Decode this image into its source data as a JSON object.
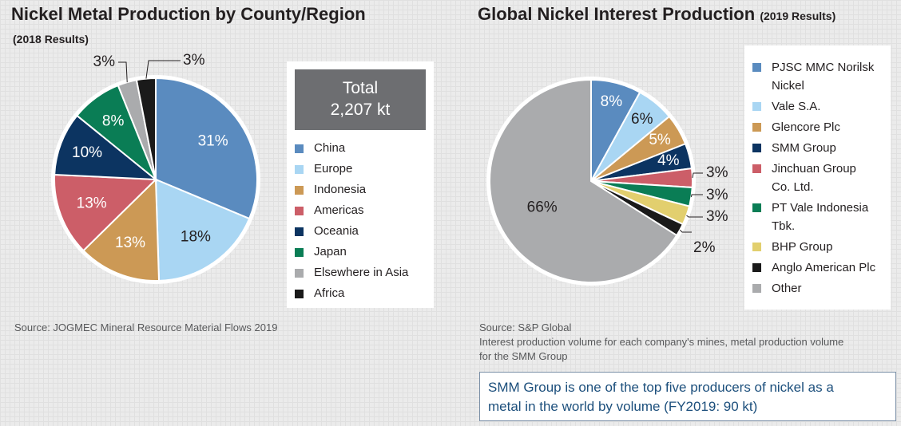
{
  "left": {
    "title": "Nickel Metal Production by County/Region",
    "subtitle": "(2018 Results)",
    "total_label": "Total",
    "total_value": "2,207 kt",
    "source": "Source: JOGMEC Mineral Resource Material Flows 2019"
  },
  "right": {
    "title": "Global Nickel Interest Production",
    "subtitle": "(2019 Results)",
    "source_line1": "Source: S&P Global",
    "source_line2": "Interest production volume for each company's mines, metal production volume",
    "source_line3": "for the SMM Group",
    "callout_line1": "SMM Group is one of the top five producers of nickel as a",
    "callout_line2": "metal in the world by volume (FY2019: 90 kt)"
  },
  "chart_data": [
    {
      "type": "pie",
      "title": "Nickel Metal Production by County/Region",
      "subtitle": "(2018 Results)",
      "total": "2,207 kt",
      "legend_position": "right",
      "slices": [
        {
          "label": "China",
          "legend": "China",
          "value": 31,
          "text": "31%",
          "color": "#5a8bbf",
          "label_color": "#ffffff"
        },
        {
          "label": "Europe",
          "legend": "Europe",
          "value": 18,
          "text": "18%",
          "color": "#a9d6f3",
          "label_color": "#231f20"
        },
        {
          "label": "Indonesia",
          "legend": "Indonesia",
          "value": 13,
          "text": "13%",
          "color": "#cc9955",
          "label_color": "#ffffff"
        },
        {
          "label": "Americas",
          "legend": "Americas",
          "value": 13,
          "text": "13%",
          "color": "#cc5e68",
          "label_color": "#ffffff"
        },
        {
          "label": "Oceania",
          "legend": "Oceania",
          "value": 10,
          "text": "10%",
          "color": "#0c3461",
          "label_color": "#ffffff"
        },
        {
          "label": "Japan",
          "legend": "Japan",
          "value": 8,
          "text": "8%",
          "color": "#0a7d55",
          "label_color": "#ffffff"
        },
        {
          "label": "Elsewhere in Asia",
          "legend": "Elsewhere in Asia",
          "value": 3,
          "text": "3%",
          "color": "#aaabad",
          "label_color": "#231f20"
        },
        {
          "label": "Africa",
          "legend": "Africa",
          "value": 3,
          "text": "3%",
          "color": "#1a1a1a",
          "label_color": "#231f20"
        }
      ]
    },
    {
      "type": "pie",
      "title": "Global Nickel Interest Production",
      "subtitle": "(2019 Results)",
      "legend_position": "right",
      "slices": [
        {
          "label": "PJSC MMC Norilsk Nickel",
          "legend": [
            "PJSC MMC Norilsk",
            "Nickel"
          ],
          "value": 8,
          "text": "8%",
          "color": "#5a8bbf",
          "label_color": "#ffffff"
        },
        {
          "label": "Vale S.A.",
          "legend": [
            "Vale S.A."
          ],
          "value": 6,
          "text": "6%",
          "color": "#a9d6f3",
          "label_color": "#231f20"
        },
        {
          "label": "Glencore Plc",
          "legend": [
            "Glencore Plc"
          ],
          "value": 5,
          "text": "5%",
          "color": "#cc9955",
          "label_color": "#ffffff"
        },
        {
          "label": "SMM Group",
          "legend": [
            "SMM Group"
          ],
          "value": 4,
          "text": "4%",
          "color": "#0c3461",
          "label_color": "#ffffff"
        },
        {
          "label": "Jinchuan Group Co. Ltd.",
          "legend": [
            "Jinchuan Group",
            "Co. Ltd."
          ],
          "value": 3,
          "text": "3%",
          "color": "#cc5e68",
          "label_color": "#231f20"
        },
        {
          "label": "PT Vale Indonesia Tbk.",
          "legend": [
            "PT Vale Indonesia",
            "Tbk."
          ],
          "value": 3,
          "text": "3%",
          "color": "#0a7d55",
          "label_color": "#231f20"
        },
        {
          "label": "BHP Group",
          "legend": [
            "BHP Group"
          ],
          "value": 3,
          "text": "3%",
          "color": "#e2cf6e",
          "label_color": "#231f20"
        },
        {
          "label": "Anglo American Plc",
          "legend": [
            "Anglo American Plc"
          ],
          "value": 2,
          "text": "2%",
          "color": "#1a1a1a",
          "label_color": "#231f20"
        },
        {
          "label": "Other",
          "legend": [
            "Other"
          ],
          "value": 66,
          "text": "66%",
          "color": "#aaabad",
          "label_color": "#231f20"
        }
      ]
    }
  ]
}
